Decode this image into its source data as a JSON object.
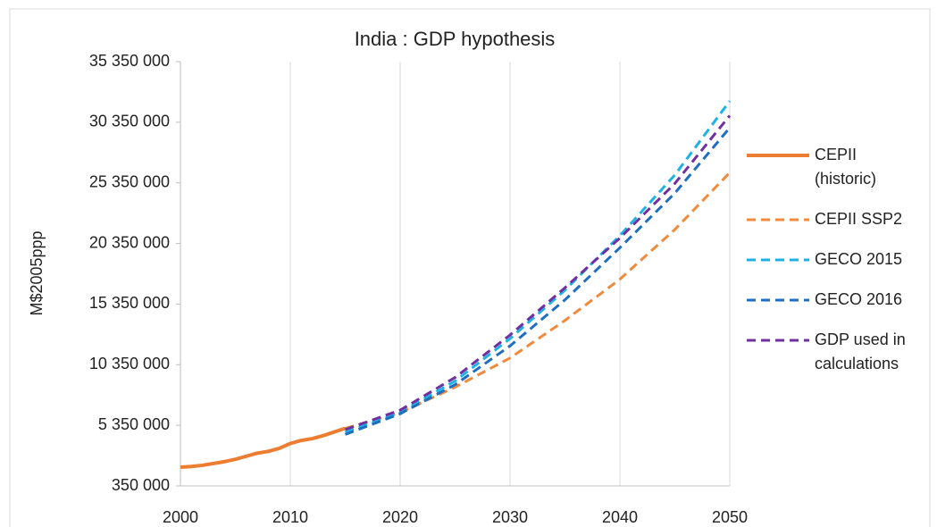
{
  "chart_data": {
    "type": "line",
    "title": "India : GDP hypothesis",
    "y_label": "M$2005ppp",
    "x": [
      2000,
      2001,
      2002,
      2003,
      2004,
      2005,
      2006,
      2007,
      2008,
      2009,
      2010,
      2011,
      2012,
      2013,
      2014,
      2015,
      2020,
      2025,
      2030,
      2035,
      2040,
      2045,
      2050
    ],
    "series": [
      {
        "name": "CEPII (historic)",
        "color": "#ED7D31",
        "dashed": false,
        "values": [
          1900000,
          1950000,
          2050000,
          2200000,
          2350000,
          2550000,
          2800000,
          3050000,
          3200000,
          3450000,
          3850000,
          4100000,
          4250000,
          4500000,
          4800000,
          5100000,
          null,
          null,
          null,
          null,
          null,
          null,
          null
        ]
      },
      {
        "name": "CEPII SSP2",
        "color": "#F08A3C",
        "dashed": true,
        "values": [
          null,
          null,
          null,
          null,
          null,
          null,
          null,
          null,
          null,
          null,
          null,
          null,
          null,
          null,
          null,
          5100000,
          6400000,
          8500000,
          10900000,
          14000000,
          17400000,
          21500000,
          26200000
        ]
      },
      {
        "name": "GECO 2015",
        "color": "#1FB3E5",
        "dashed": true,
        "values": [
          null,
          null,
          null,
          null,
          null,
          null,
          null,
          null,
          null,
          null,
          null,
          null,
          null,
          null,
          null,
          4800000,
          6400000,
          9000000,
          12500000,
          16500000,
          21000000,
          26000000,
          32100000
        ]
      },
      {
        "name": "GECO 2016",
        "color": "#1F6FC1",
        "dashed": true,
        "values": [
          null,
          null,
          null,
          null,
          null,
          null,
          null,
          null,
          null,
          null,
          null,
          null,
          null,
          null,
          null,
          4600000,
          6300000,
          8700000,
          11900000,
          15700000,
          20000000,
          24500000,
          29900000
        ]
      },
      {
        "name": "GDP used in calculations",
        "color": "#7030A0",
        "dashed": true,
        "values": [
          null,
          null,
          null,
          null,
          null,
          null,
          null,
          null,
          null,
          null,
          null,
          null,
          null,
          null,
          null,
          5000000,
          6600000,
          9300000,
          12800000,
          16700000,
          20800000,
          25300000,
          30900000
        ]
      }
    ],
    "xlim": [
      2000,
      2050
    ],
    "xticks": [
      2000,
      2010,
      2020,
      2030,
      2040,
      2050
    ],
    "ylim": [
      350000,
      35350000
    ],
    "yticks": [
      {
        "value": 350000,
        "label": "350 000"
      },
      {
        "value": 5350000,
        "label": "5 350 000"
      },
      {
        "value": 10350000,
        "label": "10 350 000"
      },
      {
        "value": 15350000,
        "label": "15 350 000"
      },
      {
        "value": 20350000,
        "label": "20 350 000"
      },
      {
        "value": 25350000,
        "label": "25 350 000"
      },
      {
        "value": 30350000,
        "label": "30 350 000"
      },
      {
        "value": 35350000,
        "label": "35 350 000"
      }
    ],
    "grid": true
  }
}
